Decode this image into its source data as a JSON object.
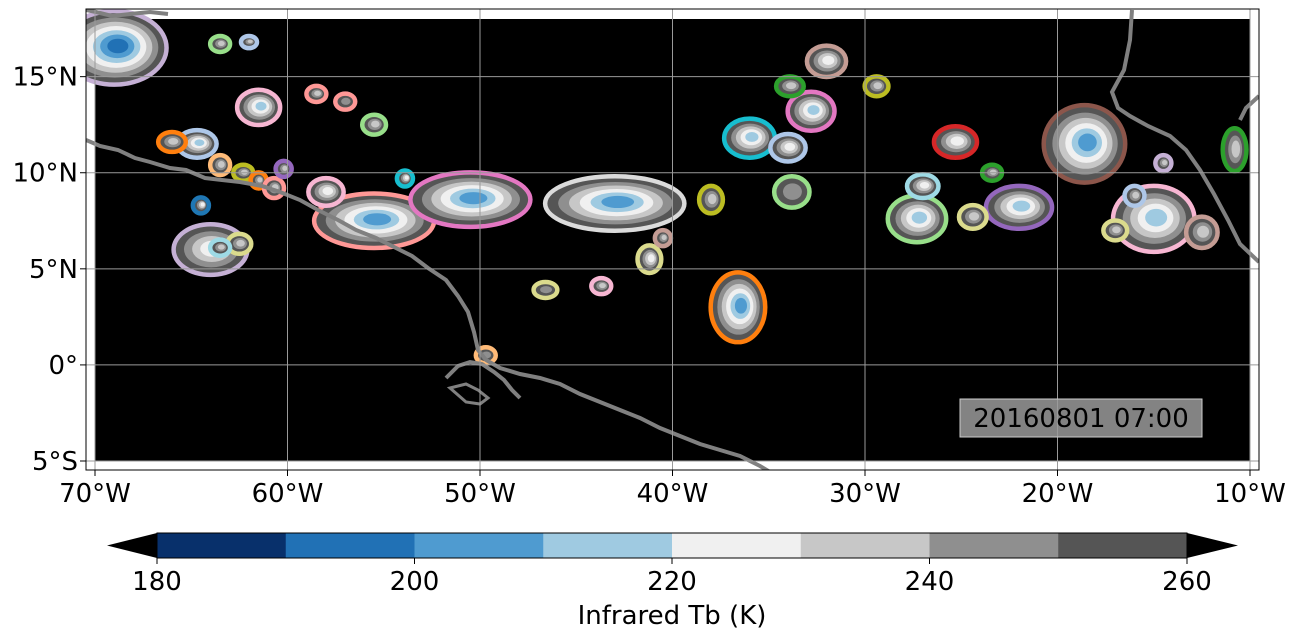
{
  "map": {
    "lon_range": [
      -70,
      -10
    ],
    "lat_range": [
      -5,
      18
    ],
    "x_ticks": [
      {
        "value": -70,
        "label": "70°W"
      },
      {
        "value": -60,
        "label": "60°W"
      },
      {
        "value": -50,
        "label": "50°W"
      },
      {
        "value": -40,
        "label": "40°W"
      },
      {
        "value": -30,
        "label": "30°W"
      },
      {
        "value": -20,
        "label": "20°W"
      },
      {
        "value": -10,
        "label": "10°W"
      }
    ],
    "y_ticks": [
      {
        "value": 15,
        "label": "15°N"
      },
      {
        "value": 10,
        "label": "10°N"
      },
      {
        "value": 5,
        "label": "5°N"
      },
      {
        "value": 0,
        "label": "0°"
      },
      {
        "value": -5,
        "label": "5°S"
      }
    ],
    "timestamp": "20160801 07:00",
    "background_color": "#000000",
    "coastline_color": "#808080",
    "gridlines": true,
    "cloud_cells": [
      {
        "lon": -69,
        "lat": 16.5,
        "rx": 2.6,
        "ry": 1.8,
        "core": 190,
        "outline": "#c5b0d5"
      },
      {
        "lon": -64.7,
        "lat": 11.5,
        "rx": 0.9,
        "ry": 0.6,
        "core": 210,
        "outline": "#aec7e8"
      },
      {
        "lon": -61.5,
        "lat": 13.4,
        "rx": 1.0,
        "ry": 0.8,
        "core": 205,
        "outline": "#f7b6d2"
      },
      {
        "lon": -55.5,
        "lat": 7.5,
        "rx": 3.0,
        "ry": 1.3,
        "core": 195,
        "outline": "#ff9896"
      },
      {
        "lon": -50.5,
        "lat": 8.6,
        "rx": 3.0,
        "ry": 1.3,
        "core": 200,
        "outline": "#e377c2"
      },
      {
        "lon": -43.0,
        "lat": 8.4,
        "rx": 3.5,
        "ry": 1.3,
        "core": 195,
        "outline": "#dbdbdb"
      },
      {
        "lon": -64.0,
        "lat": 6.0,
        "rx": 1.8,
        "ry": 1.2,
        "core": 215,
        "outline": "#c5b0d5"
      },
      {
        "lon": -36.6,
        "lat": 3.0,
        "rx": 1.3,
        "ry": 1.7,
        "core": 195,
        "outline": "#ff7f0e"
      },
      {
        "lon": -36.0,
        "lat": 11.8,
        "rx": 1.2,
        "ry": 0.9,
        "core": 205,
        "outline": "#17becf"
      },
      {
        "lon": -32.8,
        "lat": 13.2,
        "rx": 1.1,
        "ry": 0.9,
        "core": 210,
        "outline": "#e377c2"
      },
      {
        "lon": -32.0,
        "lat": 15.8,
        "rx": 0.9,
        "ry": 0.7,
        "core": 215,
        "outline": "#c49c94"
      },
      {
        "lon": -27.3,
        "lat": 7.6,
        "rx": 1.4,
        "ry": 1.1,
        "core": 205,
        "outline": "#98df8a"
      },
      {
        "lon": -25.3,
        "lat": 11.6,
        "rx": 1.0,
        "ry": 0.7,
        "core": 220,
        "outline": "#d62728"
      },
      {
        "lon": -22.0,
        "lat": 8.2,
        "rx": 1.6,
        "ry": 1.0,
        "core": 210,
        "outline": "#9467bd"
      },
      {
        "lon": -18.6,
        "lat": 11.5,
        "rx": 2.0,
        "ry": 1.9,
        "core": 195,
        "outline": "#8c564b"
      },
      {
        "lon": -15.0,
        "lat": 7.6,
        "rx": 2.0,
        "ry": 1.6,
        "core": 205,
        "outline": "#f7b6d2"
      },
      {
        "lon": -12.5,
        "lat": 6.9,
        "rx": 0.7,
        "ry": 0.7,
        "core": 225,
        "outline": "#c49c94"
      },
      {
        "lon": -10.8,
        "lat": 11.2,
        "rx": 0.5,
        "ry": 1.0,
        "core": 225,
        "outline": "#2ca02c"
      },
      {
        "lon": -33.8,
        "lat": 9.0,
        "rx": 0.8,
        "ry": 0.7,
        "core": 235,
        "outline": "#98df8a"
      },
      {
        "lon": -34.0,
        "lat": 11.3,
        "rx": 0.8,
        "ry": 0.6,
        "core": 215,
        "outline": "#aec7e8"
      },
      {
        "lon": -38.0,
        "lat": 8.6,
        "rx": 0.5,
        "ry": 0.6,
        "core": 225,
        "outline": "#bcbd22"
      },
      {
        "lon": -41.2,
        "lat": 5.5,
        "rx": 0.5,
        "ry": 0.6,
        "core": 220,
        "outline": "#dbdb8d"
      },
      {
        "lon": -24.4,
        "lat": 7.7,
        "rx": 0.6,
        "ry": 0.5,
        "core": 225,
        "outline": "#dbdb8d"
      },
      {
        "lon": -58.0,
        "lat": 9.0,
        "rx": 0.8,
        "ry": 0.6,
        "core": 215,
        "outline": "#f7b6d2"
      },
      {
        "lon": -66.0,
        "lat": 11.6,
        "rx": 0.6,
        "ry": 0.4,
        "core": 225,
        "outline": "#ff7f0e"
      },
      {
        "lon": -63.5,
        "lat": 10.4,
        "rx": 0.4,
        "ry": 0.4,
        "core": 230,
        "outline": "#ffbb78"
      },
      {
        "lon": -62.3,
        "lat": 10.0,
        "rx": 0.4,
        "ry": 0.3,
        "core": 230,
        "outline": "#bcbd22"
      },
      {
        "lon": -61.5,
        "lat": 9.6,
        "rx": 0.3,
        "ry": 0.3,
        "core": 230,
        "outline": "#ff7f0e"
      },
      {
        "lon": -60.7,
        "lat": 9.2,
        "rx": 0.4,
        "ry": 0.4,
        "core": 225,
        "outline": "#ff9896"
      },
      {
        "lon": -60.2,
        "lat": 10.2,
        "rx": 0.3,
        "ry": 0.3,
        "core": 230,
        "outline": "#9467bd"
      },
      {
        "lon": -57.0,
        "lat": 13.7,
        "rx": 0.4,
        "ry": 0.3,
        "core": 235,
        "outline": "#ff9896"
      },
      {
        "lon": -55.5,
        "lat": 12.5,
        "rx": 0.5,
        "ry": 0.4,
        "core": 230,
        "outline": "#98df8a"
      },
      {
        "lon": -58.5,
        "lat": 14.1,
        "rx": 0.4,
        "ry": 0.3,
        "core": 230,
        "outline": "#ff9896"
      },
      {
        "lon": -62.5,
        "lat": 6.3,
        "rx": 0.5,
        "ry": 0.4,
        "core": 225,
        "outline": "#dbdb8d"
      },
      {
        "lon": -63.5,
        "lat": 6.1,
        "rx": 0.4,
        "ry": 0.3,
        "core": 225,
        "outline": "#9edae5"
      },
      {
        "lon": -64.5,
        "lat": 8.3,
        "rx": 0.3,
        "ry": 0.3,
        "core": 215,
        "outline": "#1f77b4"
      },
      {
        "lon": -63.5,
        "lat": 16.7,
        "rx": 0.4,
        "ry": 0.3,
        "core": 225,
        "outline": "#98df8a"
      },
      {
        "lon": -62.0,
        "lat": 16.8,
        "rx": 0.3,
        "ry": 0.2,
        "core": 230,
        "outline": "#aec7e8"
      },
      {
        "lon": -29.4,
        "lat": 14.5,
        "rx": 0.5,
        "ry": 0.4,
        "core": 230,
        "outline": "#bcbd22"
      },
      {
        "lon": -33.9,
        "lat": 14.5,
        "rx": 0.6,
        "ry": 0.4,
        "core": 225,
        "outline": "#2ca02c"
      },
      {
        "lon": -23.4,
        "lat": 10.0,
        "rx": 0.4,
        "ry": 0.3,
        "core": 230,
        "outline": "#2ca02c"
      },
      {
        "lon": -27.0,
        "lat": 9.3,
        "rx": 0.7,
        "ry": 0.5,
        "core": 215,
        "outline": "#9edae5"
      },
      {
        "lon": -16.0,
        "lat": 8.8,
        "rx": 0.4,
        "ry": 0.4,
        "core": 225,
        "outline": "#aec7e8"
      },
      {
        "lon": -17.0,
        "lat": 7.0,
        "rx": 0.5,
        "ry": 0.4,
        "core": 230,
        "outline": "#dbdb8d"
      },
      {
        "lon": -14.5,
        "lat": 10.5,
        "rx": 0.3,
        "ry": 0.3,
        "core": 230,
        "outline": "#c5b0d5"
      },
      {
        "lon": -46.6,
        "lat": 3.9,
        "rx": 0.5,
        "ry": 0.3,
        "core": 235,
        "outline": "#dbdb8d"
      },
      {
        "lon": -43.7,
        "lat": 4.1,
        "rx": 0.4,
        "ry": 0.3,
        "core": 230,
        "outline": "#f7b6d2"
      },
      {
        "lon": -49.7,
        "lat": 0.5,
        "rx": 0.4,
        "ry": 0.3,
        "core": 235,
        "outline": "#ffbb78"
      },
      {
        "lon": -53.9,
        "lat": 9.7,
        "rx": 0.3,
        "ry": 0.3,
        "core": 220,
        "outline": "#17becf"
      },
      {
        "lon": -40.5,
        "lat": 6.6,
        "rx": 0.3,
        "ry": 0.3,
        "core": 230,
        "outline": "#c49c94"
      }
    ]
  },
  "colorbar": {
    "min": 180,
    "max": 260,
    "step": 10,
    "colors": [
      "#08306b",
      "#2171b5",
      "#4f9bd0",
      "#9fcae1",
      "#f0f0f0",
      "#c7c7c7",
      "#8f8f8f",
      "#555555"
    ],
    "under_color": "#000000",
    "over_color": "#000000",
    "ticks": [
      180,
      200,
      220,
      240,
      260
    ],
    "tick_labels": [
      "180",
      "200",
      "220",
      "240",
      "260"
    ],
    "label": "Infrared Tb (K)"
  }
}
